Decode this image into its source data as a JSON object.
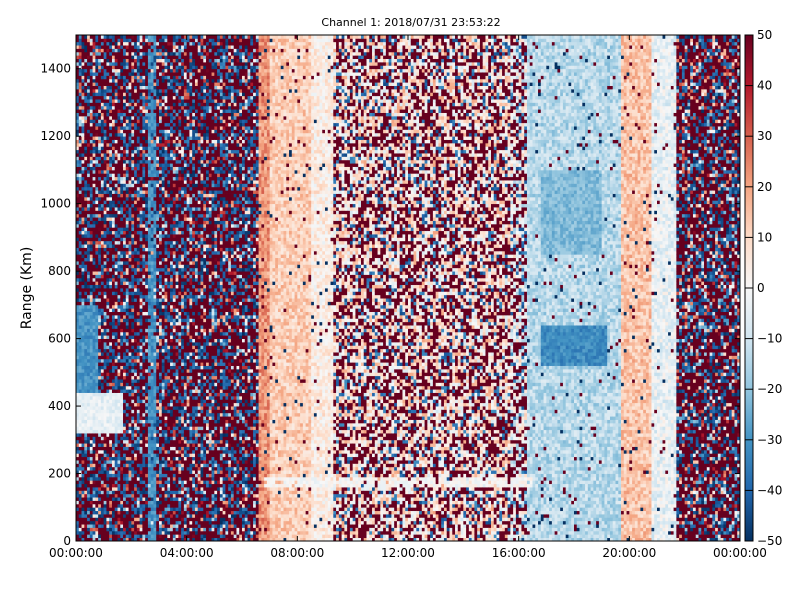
{
  "chart_data": {
    "type": "heatmap",
    "title": "Channel 1: 2018/07/31 23:53:22",
    "xlabel": "",
    "ylabel": "Range (Km)",
    "x_ticks": [
      "00:00:00",
      "04:00:00",
      "08:00:00",
      "12:00:00",
      "16:00:00",
      "20:00:00",
      "00:00:00"
    ],
    "x_tick_hours": [
      0,
      4,
      8,
      12,
      16,
      20,
      24
    ],
    "xlim_hours": [
      0,
      24
    ],
    "y_ticks": [
      0,
      200,
      400,
      600,
      800,
      1000,
      1200,
      1400
    ],
    "ylim": [
      0,
      1500
    ],
    "colorbar": {
      "ticks": [
        50,
        40,
        30,
        20,
        10,
        0,
        -10,
        -20,
        -30,
        -40,
        -50
      ],
      "range": [
        -50,
        50
      ],
      "colormap": "RdBu_r",
      "colors": [
        "#053061",
        "#2166ac",
        "#4393c3",
        "#92c5de",
        "#d1e5f0",
        "#f7f7f7",
        "#fddbc7",
        "#f4a582",
        "#d6604d",
        "#b2182b",
        "#67001f"
      ]
    },
    "grid": false,
    "time_bands": [
      {
        "start_hour": 0.0,
        "end_hour": 6.6,
        "pattern": "noise",
        "bias": 10
      },
      {
        "start_hour": 6.6,
        "end_hour": 7.0,
        "pattern": "smooth",
        "mean": 22
      },
      {
        "start_hour": 7.0,
        "end_hour": 8.5,
        "pattern": "smooth",
        "mean": 12
      },
      {
        "start_hour": 8.5,
        "end_hour": 9.3,
        "pattern": "smooth",
        "mean": 4
      },
      {
        "start_hour": 9.3,
        "end_hour": 15.7,
        "pattern": "mixed",
        "bias": 18
      },
      {
        "start_hour": 15.7,
        "end_hour": 16.3,
        "pattern": "mixed",
        "bias": -8
      },
      {
        "start_hour": 16.3,
        "end_hour": 19.7,
        "pattern": "smooth",
        "mean": -14
      },
      {
        "start_hour": 19.7,
        "end_hour": 20.8,
        "pattern": "smooth",
        "mean": 14
      },
      {
        "start_hour": 20.8,
        "end_hour": 21.7,
        "pattern": "smooth",
        "mean": -4
      },
      {
        "start_hour": 21.7,
        "end_hour": 24.0,
        "pattern": "noise",
        "bias": 20
      }
    ],
    "features": [
      {
        "kind": "blob",
        "hour_range": [
          0.0,
          1.7
        ],
        "range_km": [
          320,
          440
        ],
        "value": -5,
        "note": "white-blue echo near 400 km"
      },
      {
        "kind": "blob",
        "hour_range": [
          0.0,
          0.8
        ],
        "range_km": [
          440,
          700
        ],
        "value": -30
      },
      {
        "kind": "streak",
        "hour_range": [
          6.8,
          16.5
        ],
        "range_km": [
          160,
          190
        ],
        "value": 0
      },
      {
        "kind": "streak",
        "hour_range": [
          2.6,
          2.9
        ],
        "range_km": [
          0,
          1500
        ],
        "value": -30
      },
      {
        "kind": "blob",
        "hour_range": [
          16.8,
          19.2
        ],
        "range_km": [
          520,
          640
        ],
        "value": -32
      },
      {
        "kind": "blob",
        "hour_range": [
          16.8,
          19.0
        ],
        "range_km": [
          850,
          1100
        ],
        "value": -22
      }
    ]
  }
}
